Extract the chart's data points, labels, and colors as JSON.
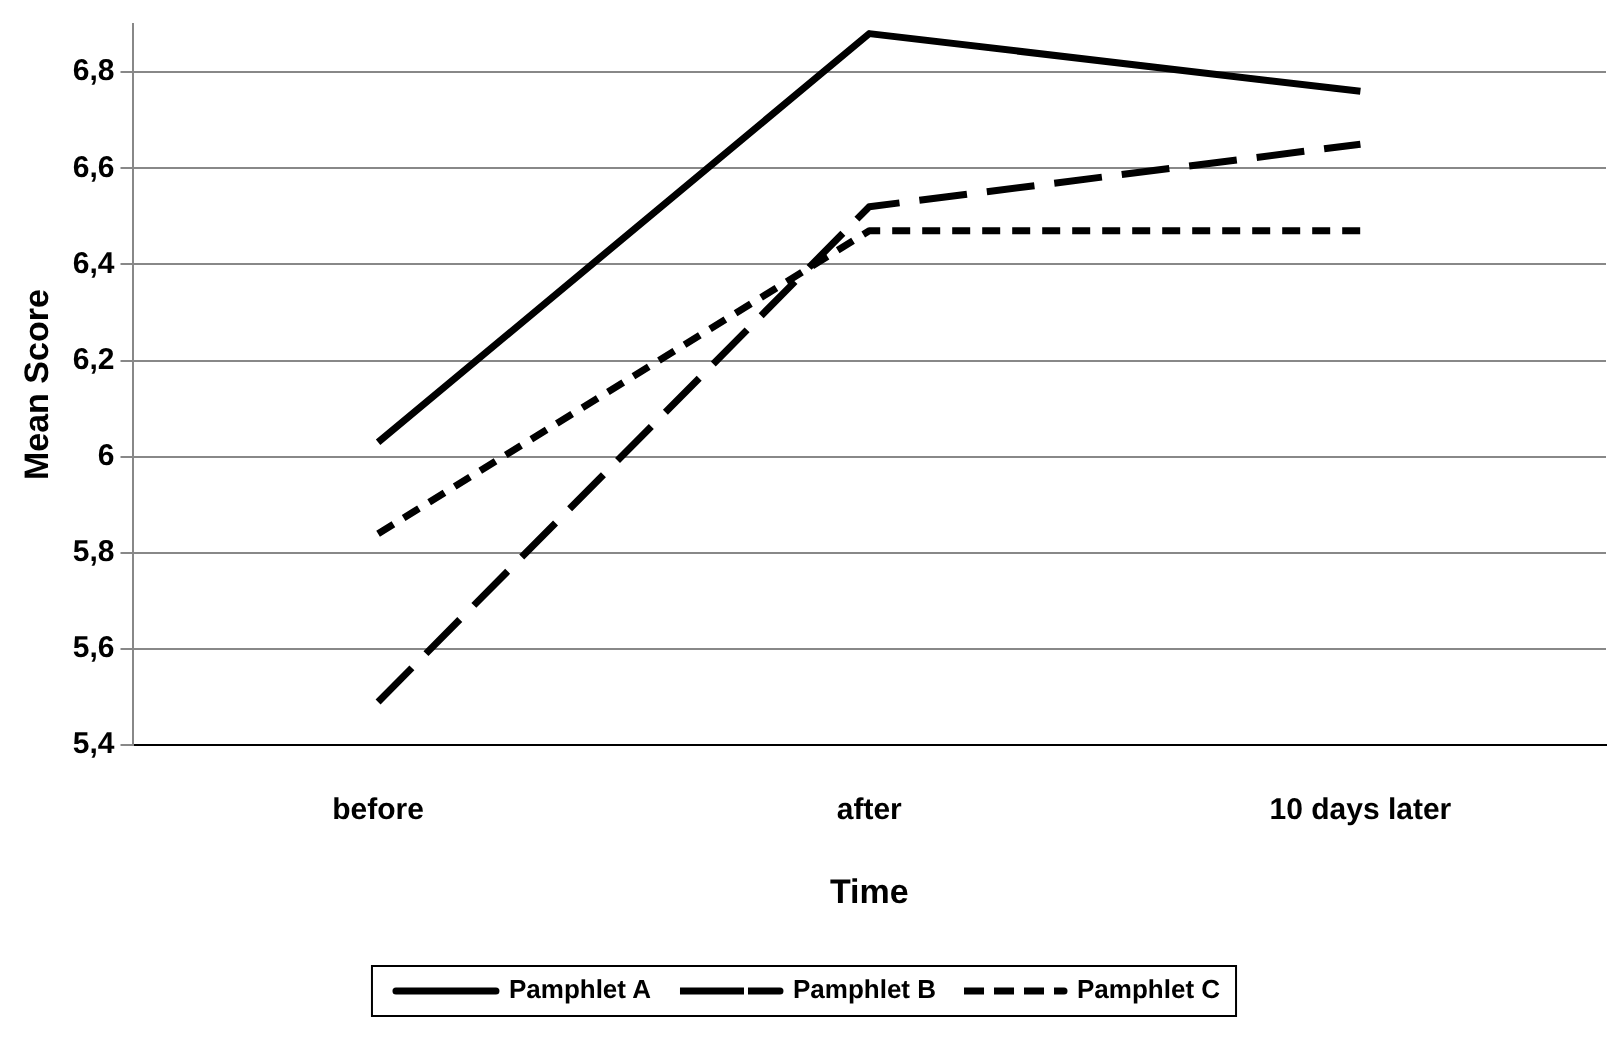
{
  "chart_data": {
    "type": "line",
    "xlabel": "Time",
    "ylabel": "Mean Score",
    "categories": [
      "before",
      "after",
      "10 days later"
    ],
    "series": [
      {
        "name": "Pamphlet A",
        "color": "#000000",
        "line_style": "solid",
        "values": [
          6.03,
          6.88,
          6.76
        ]
      },
      {
        "name": "Pamphlet B",
        "color": "#000000",
        "line_style": "dashed",
        "values": [
          5.49,
          6.52,
          6.65
        ]
      },
      {
        "name": "Pamphlet C",
        "color": "#000000",
        "line_style": "dotted",
        "values": [
          5.84,
          6.47,
          6.47
        ]
      }
    ],
    "ylim": [
      5.4,
      6.9
    ],
    "yticks": [
      {
        "value": 5.4,
        "label": "5,4"
      },
      {
        "value": 5.6,
        "label": "5,6"
      },
      {
        "value": 5.8,
        "label": "5,8"
      },
      6,
      {
        "value": 6.2,
        "label": "6,2"
      },
      {
        "value": 6.4,
        "label": "6,4"
      },
      {
        "value": 6.6,
        "label": "6,6"
      },
      {
        "value": 6.8,
        "label": "6,8"
      }
    ],
    "grid": "y",
    "legend": "bottom",
    "marker": "none"
  }
}
